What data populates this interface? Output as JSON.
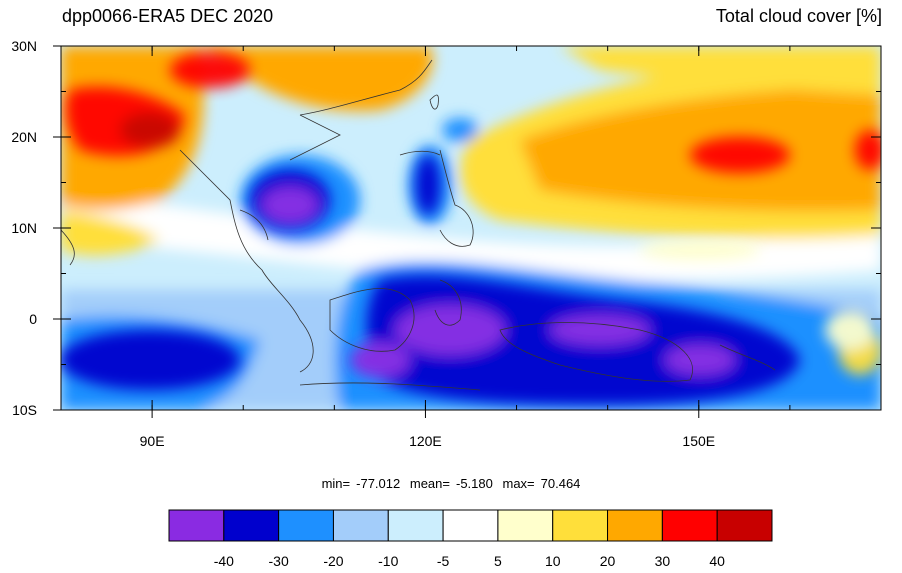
{
  "header": {
    "title_left": "dpp0066-ERA5 DEC 2020",
    "title_right": "Total cloud cover [%]"
  },
  "map": {
    "variable": "Total cloud cover difference",
    "lon_range": [
      80,
      170
    ],
    "lat_range": [
      -10,
      30
    ],
    "lon_ticks": [
      {
        "lon": 90,
        "label": "90E"
      },
      {
        "lon": 120,
        "label": "120E"
      },
      {
        "lon": 150,
        "label": "150E"
      }
    ],
    "lat_ticks": [
      {
        "lat": 30,
        "label": "30N"
      },
      {
        "lat": 20,
        "label": "20N"
      },
      {
        "lat": 10,
        "label": "10N"
      },
      {
        "lat": 0,
        "label": "0"
      },
      {
        "lat": -10,
        "label": "10S"
      }
    ]
  },
  "stats": {
    "min_label": "min=",
    "min": "-77.012",
    "mean_label": "mean=",
    "mean": "-5.180",
    "max_label": "max=",
    "max": "70.464"
  },
  "colorbar": {
    "colors": [
      "#8a2be2",
      "#0000cd",
      "#1e90ff",
      "#a3cdfa",
      "#cceefd",
      "#ffffff",
      "#ffffcc",
      "#ffdf3a",
      "#ffa800",
      "#ff0000",
      "#c80000"
    ],
    "labels": [
      "-40",
      "-30",
      "-20",
      "-10",
      "-5",
      "5",
      "10",
      "20",
      "30",
      "40"
    ]
  }
}
